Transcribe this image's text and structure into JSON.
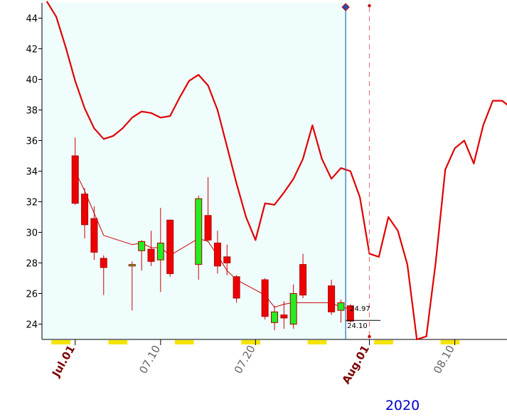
{
  "chart_data": {
    "type": "candlestick",
    "title": "",
    "xlabel": "",
    "ylabel": "",
    "year_label": "2020",
    "ylim": [
      23,
      45
    ],
    "y_ticks": [
      24,
      26,
      28,
      30,
      32,
      34,
      36,
      38,
      40,
      42,
      44
    ],
    "x_ticks": [
      {
        "label": "Jul.01",
        "day": 1,
        "emphasis": true
      },
      {
        "label": "07.10",
        "day": 10,
        "emphasis": false
      },
      {
        "label": "07.20",
        "day": 20,
        "emphasis": false
      },
      {
        "label": "Aug.01",
        "day": 32,
        "emphasis": true
      },
      {
        "label": "08.10",
        "day": 41,
        "emphasis": false
      }
    ],
    "x_range_days": [
      -2.5,
      46.5
    ],
    "cursor_day": 29.5,
    "future_marker_day": 32,
    "price_labels": [
      "24.97",
      "24.10"
    ],
    "candles": [
      {
        "day": 1,
        "open": 35.0,
        "high": 36.2,
        "low": 31.8,
        "close": 31.9
      },
      {
        "day": 2,
        "open": 32.5,
        "high": 32.9,
        "low": 29.6,
        "close": 30.5
      },
      {
        "day": 3,
        "open": 30.9,
        "high": 31.7,
        "low": 28.2,
        "close": 28.7
      },
      {
        "day": 4,
        "open": 28.3,
        "high": 28.5,
        "low": 25.9,
        "close": 27.7
      },
      {
        "day": 7,
        "open": 27.8,
        "high": 28.1,
        "low": 24.9,
        "close": 27.9
      },
      {
        "day": 8,
        "open": 28.8,
        "high": 29.5,
        "low": 27.5,
        "close": 29.4
      },
      {
        "day": 9,
        "open": 28.9,
        "high": 30.1,
        "low": 27.8,
        "close": 28.1
      },
      {
        "day": 10,
        "open": 28.2,
        "high": 31.6,
        "low": 26.1,
        "close": 29.3
      },
      {
        "day": 11,
        "open": 30.8,
        "high": 30.8,
        "low": 27.1,
        "close": 27.3
      },
      {
        "day": 14,
        "open": 27.9,
        "high": 32.4,
        "low": 26.9,
        "close": 32.2
      },
      {
        "day": 15,
        "open": 31.1,
        "high": 33.6,
        "low": 29.4,
        "close": 29.5
      },
      {
        "day": 16,
        "open": 29.3,
        "high": 30.1,
        "low": 27.3,
        "close": 27.8
      },
      {
        "day": 17,
        "open": 28.4,
        "high": 29.2,
        "low": 27.2,
        "close": 28.0
      },
      {
        "day": 18,
        "open": 27.1,
        "high": 27.2,
        "low": 25.4,
        "close": 25.7
      },
      {
        "day": 21,
        "open": 26.9,
        "high": 27.0,
        "low": 24.3,
        "close": 24.5
      },
      {
        "day": 22,
        "open": 24.1,
        "high": 25.2,
        "low": 23.6,
        "close": 24.8
      },
      {
        "day": 23,
        "open": 24.6,
        "high": 25.5,
        "low": 23.7,
        "close": 24.4
      },
      {
        "day": 24,
        "open": 24.0,
        "high": 26.6,
        "low": 23.7,
        "close": 26.0
      },
      {
        "day": 25,
        "open": 27.9,
        "high": 28.6,
        "low": 25.7,
        "close": 25.9
      },
      {
        "day": 28,
        "open": 26.5,
        "high": 26.9,
        "low": 24.6,
        "close": 24.8
      },
      {
        "day": 29,
        "open": 24.9,
        "high": 25.6,
        "low": 24.1,
        "close": 25.4
      },
      {
        "day": 30,
        "open": 25.2,
        "high": 25.3,
        "low": 24.1,
        "close": 24.2
      }
    ],
    "series": [
      {
        "kind": "moving_average",
        "color": "#cc0000",
        "points": [
          [
            1,
            34.0
          ],
          [
            2,
            32.7
          ],
          [
            4,
            29.8
          ],
          [
            7,
            29.2
          ],
          [
            8,
            29.3
          ],
          [
            9,
            29.0
          ],
          [
            10,
            29.0
          ],
          [
            11,
            28.5
          ],
          [
            14,
            29.6
          ],
          [
            15,
            29.4
          ],
          [
            16,
            28.5
          ],
          [
            17,
            27.5
          ],
          [
            18,
            26.9
          ],
          [
            21,
            25.9
          ],
          [
            22,
            25.1
          ],
          [
            23,
            25.3
          ],
          [
            24,
            25.4
          ],
          [
            28,
            25.4
          ],
          [
            29,
            25.1
          ],
          [
            30,
            25.0
          ]
        ]
      },
      {
        "kind": "line",
        "color": "#e00000",
        "points": [
          [
            -2,
            45.1
          ],
          [
            -1,
            44.1
          ],
          [
            0,
            42.1
          ],
          [
            1,
            39.9
          ],
          [
            2,
            38.1
          ],
          [
            3,
            36.8
          ],
          [
            4,
            36.1
          ],
          [
            5,
            36.3
          ],
          [
            6,
            36.8
          ],
          [
            7,
            37.5
          ],
          [
            8,
            37.9
          ],
          [
            9,
            37.8
          ],
          [
            10,
            37.5
          ],
          [
            11,
            37.6
          ],
          [
            12,
            38.8
          ],
          [
            13,
            39.9
          ],
          [
            14,
            40.3
          ],
          [
            15,
            39.6
          ],
          [
            16,
            38.0
          ],
          [
            17,
            35.6
          ],
          [
            18,
            33.2
          ],
          [
            19,
            31.0
          ],
          [
            20,
            29.5
          ],
          [
            21,
            31.9
          ],
          [
            22,
            31.8
          ],
          [
            23,
            32.6
          ],
          [
            24,
            33.5
          ],
          [
            25,
            34.8
          ],
          [
            26,
            37.0
          ],
          [
            27,
            34.8
          ],
          [
            28,
            33.5
          ],
          [
            29,
            34.2
          ],
          [
            30,
            34.0
          ],
          [
            31,
            32.3
          ],
          [
            32,
            28.6
          ],
          [
            33,
            28.4
          ],
          [
            34,
            31.0
          ],
          [
            35,
            30.1
          ],
          [
            36,
            27.9
          ],
          [
            37,
            23.0
          ],
          [
            38,
            23.2
          ],
          [
            39,
            28.1
          ],
          [
            40,
            34.1
          ],
          [
            41,
            35.5
          ],
          [
            42,
            36.0
          ],
          [
            43,
            34.5
          ],
          [
            44,
            37.0
          ],
          [
            45,
            38.6
          ],
          [
            46,
            38.6
          ],
          [
            47,
            38.1
          ],
          [
            48,
            38.1
          ]
        ]
      }
    ]
  }
}
